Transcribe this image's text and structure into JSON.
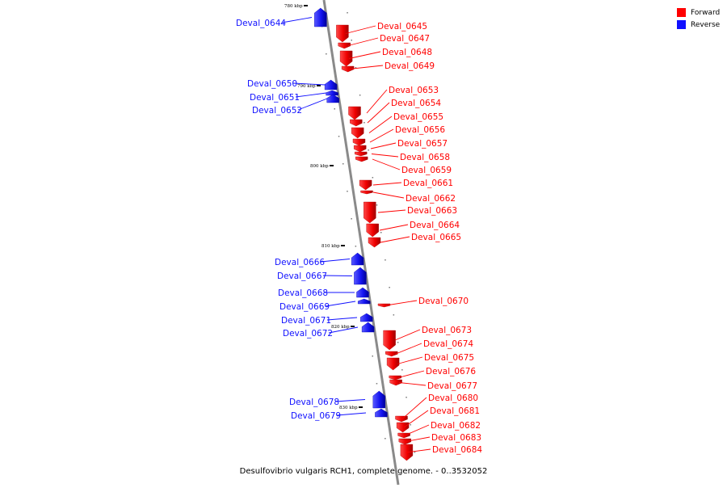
{
  "legend": {
    "forward_label": "Forward",
    "reverse_label": "Reverse",
    "forward_color": "#ff0000",
    "reverse_color": "#1010ff"
  },
  "caption": "Desulfovibrio vulgaris RCH1, complete genome. - 0..3532052",
  "ticks": [
    "780 kbp",
    "790 kbp",
    "800 kbp",
    "810 kbp",
    "820 kbp",
    "830 kbp"
  ],
  "genes": [
    {
      "name": "Deval_0644",
      "strand": "reverse"
    },
    {
      "name": "Deval_0645",
      "strand": "forward"
    },
    {
      "name": "Deval_0647",
      "strand": "forward"
    },
    {
      "name": "Deval_0648",
      "strand": "forward"
    },
    {
      "name": "Deval_0649",
      "strand": "forward"
    },
    {
      "name": "Deval_0650",
      "strand": "reverse"
    },
    {
      "name": "Deval_0651",
      "strand": "reverse"
    },
    {
      "name": "Deval_0652",
      "strand": "reverse"
    },
    {
      "name": "Deval_0653",
      "strand": "forward"
    },
    {
      "name": "Deval_0654",
      "strand": "forward"
    },
    {
      "name": "Deval_0655",
      "strand": "forward"
    },
    {
      "name": "Deval_0656",
      "strand": "forward"
    },
    {
      "name": "Deval_0657",
      "strand": "forward"
    },
    {
      "name": "Deval_0658",
      "strand": "forward"
    },
    {
      "name": "Deval_0659",
      "strand": "forward"
    },
    {
      "name": "Deval_0661",
      "strand": "forward"
    },
    {
      "name": "Deval_0662",
      "strand": "forward"
    },
    {
      "name": "Deval_0663",
      "strand": "forward"
    },
    {
      "name": "Deval_0664",
      "strand": "forward"
    },
    {
      "name": "Deval_0665",
      "strand": "forward"
    },
    {
      "name": "Deval_0666",
      "strand": "reverse"
    },
    {
      "name": "Deval_0667",
      "strand": "reverse"
    },
    {
      "name": "Deval_0668",
      "strand": "reverse"
    },
    {
      "name": "Deval_0669",
      "strand": "reverse"
    },
    {
      "name": "Deval_0670",
      "strand": "forward"
    },
    {
      "name": "Deval_0671",
      "strand": "reverse"
    },
    {
      "name": "Deval_0672",
      "strand": "reverse"
    },
    {
      "name": "Deval_0673",
      "strand": "forward"
    },
    {
      "name": "Deval_0674",
      "strand": "forward"
    },
    {
      "name": "Deval_0675",
      "strand": "forward"
    },
    {
      "name": "Deval_0676",
      "strand": "forward"
    },
    {
      "name": "Deval_0677",
      "strand": "forward"
    },
    {
      "name": "Deval_0678",
      "strand": "reverse"
    },
    {
      "name": "Deval_0679",
      "strand": "reverse"
    },
    {
      "name": "Deval_0680",
      "strand": "forward"
    },
    {
      "name": "Deval_0681",
      "strand": "forward"
    },
    {
      "name": "Deval_0682",
      "strand": "forward"
    },
    {
      "name": "Deval_0683",
      "strand": "forward"
    },
    {
      "name": "Deval_0684",
      "strand": "forward"
    }
  ]
}
